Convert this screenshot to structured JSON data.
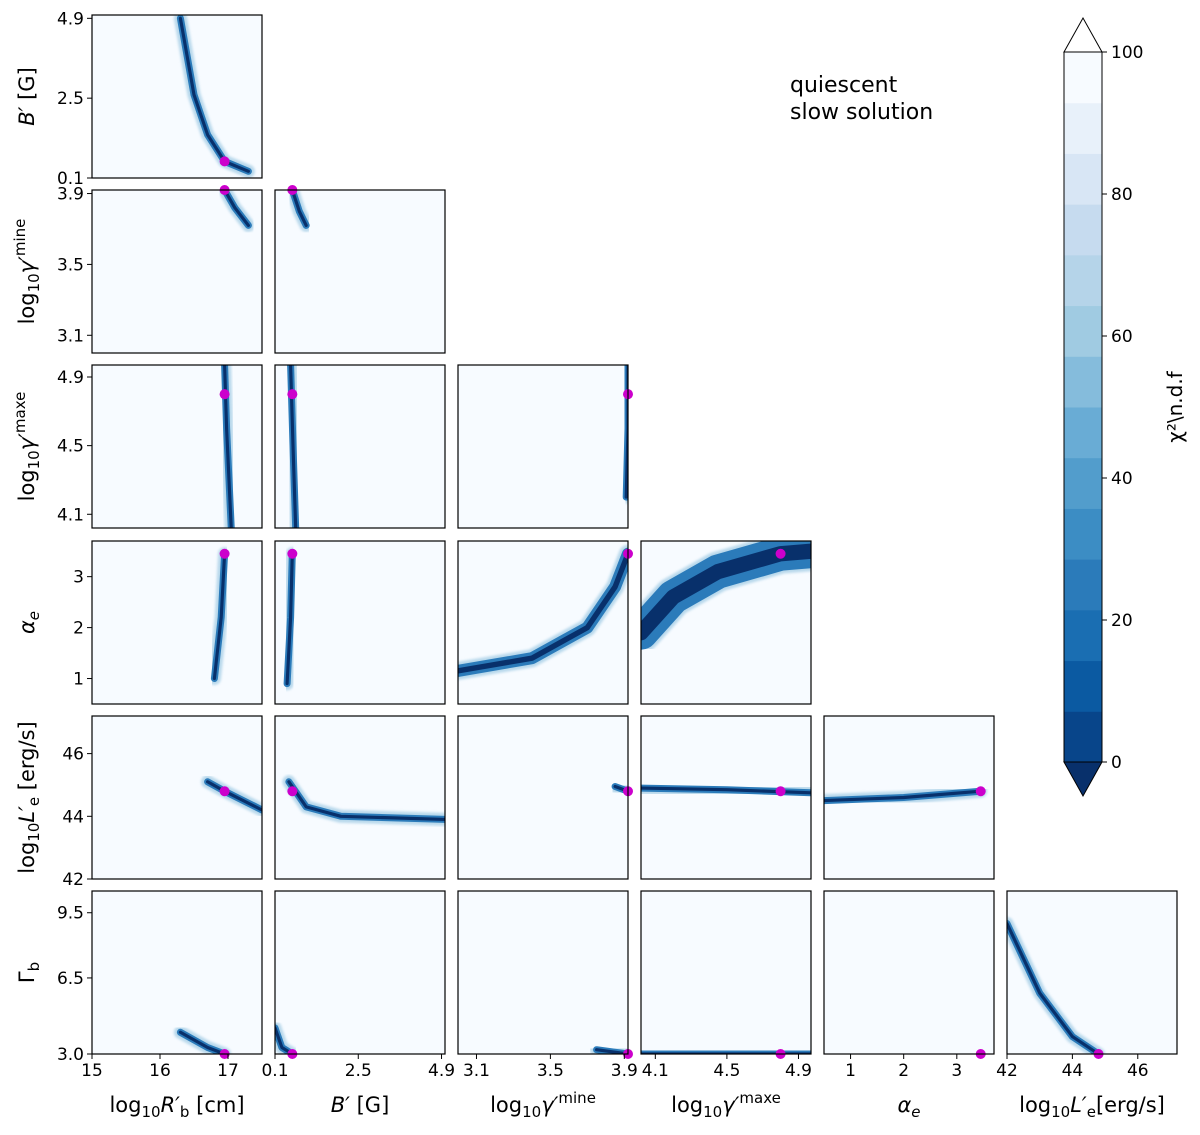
{
  "annotation": {
    "line1": "quiescent",
    "line2": "slow solution"
  },
  "colorbar": {
    "label": "χ²\\n.d.f",
    "ticks": [
      "0",
      "20",
      "40",
      "60",
      "80",
      "100"
    ],
    "range": [
      0,
      100
    ],
    "levels": 14,
    "extend": "both",
    "colormap": "Blues_r",
    "colors": [
      "#08306b",
      "#08458a",
      "#0b5aa2",
      "#1a6eb2",
      "#2b7bba",
      "#3c8dc4",
      "#529dcc",
      "#69acd5",
      "#85bcdc",
      "#a0cbe2",
      "#b5d4e9",
      "#c6dbef",
      "#d8e6f5",
      "#e8f1fa",
      "#f7fbff"
    ]
  },
  "best_fit_marker_color": "#cc00cc",
  "parameters": [
    {
      "id": "R",
      "label": "log₁₀R′b [cm]",
      "range": [
        15,
        17.5
      ],
      "ticks": [
        "15",
        "16",
        "17"
      ],
      "best": 16.95
    },
    {
      "id": "B",
      "label": "B′ [G]",
      "range": [
        0.1,
        5.0
      ],
      "ticks": [
        "0.1",
        "2.5",
        "4.9"
      ],
      "best": 0.6
    },
    {
      "id": "gmin",
      "label": "log₁₀γ′e^min",
      "range": [
        3.0,
        3.92
      ],
      "ticks": [
        "3.1",
        "3.5",
        "3.9"
      ],
      "best": 3.92
    },
    {
      "id": "gmax",
      "label": "log₁₀γ′e^max",
      "range": [
        4.02,
        4.97
      ],
      "ticks": [
        "4.1",
        "4.5",
        "4.9"
      ],
      "best": 4.8
    },
    {
      "id": "a",
      "label": "αe",
      "range": [
        0.5,
        3.7
      ],
      "ticks": [
        "1",
        "2",
        "3"
      ],
      "best": 3.45
    },
    {
      "id": "L",
      "label": "log₁₀L′e [erg/s]",
      "x_label": "log₁₀L′e[erg/s]",
      "range": [
        42,
        47.2
      ],
      "ticks": [
        "42",
        "44",
        "46"
      ],
      "best": 44.8
    },
    {
      "id": "G",
      "label": "Γb",
      "range": [
        3.0,
        10.5
      ],
      "ticks": [
        "3.0",
        "6.5",
        "9.5"
      ],
      "best": 3.0
    }
  ],
  "chart_data": {
    "type": "heatmap",
    "description": "Corner plot of χ²/n.d.f over pairs of parameters; valley curves (low χ²) in data units",
    "panels": [
      {
        "row": "B",
        "col": "R",
        "valley": [
          [
            16.3,
            4.9
          ],
          [
            16.5,
            2.6
          ],
          [
            16.7,
            1.4
          ],
          [
            16.95,
            0.6
          ],
          [
            17.3,
            0.3
          ]
        ]
      },
      {
        "row": "gmin",
        "col": "R",
        "valley": [
          [
            16.95,
            3.92
          ],
          [
            17.1,
            3.82
          ],
          [
            17.3,
            3.72
          ]
        ]
      },
      {
        "row": "gmin",
        "col": "B",
        "valley": [
          [
            0.6,
            3.92
          ],
          [
            0.8,
            3.8
          ],
          [
            1.0,
            3.72
          ]
        ]
      },
      {
        "row": "gmax",
        "col": "R",
        "valley": [
          [
            16.95,
            4.97
          ],
          [
            16.98,
            4.6
          ],
          [
            17.05,
            4.0
          ]
        ]
      },
      {
        "row": "gmax",
        "col": "B",
        "valley": [
          [
            0.55,
            4.97
          ],
          [
            0.62,
            4.5
          ],
          [
            0.7,
            4.0
          ]
        ]
      },
      {
        "row": "gmax",
        "col": "gmin",
        "valley": [
          [
            3.91,
            4.2
          ],
          [
            3.92,
            4.6
          ],
          [
            3.92,
            4.97
          ]
        ]
      },
      {
        "row": "a",
        "col": "R",
        "valley": [
          [
            16.8,
            1.0
          ],
          [
            16.9,
            2.2
          ],
          [
            16.95,
            3.45
          ]
        ]
      },
      {
        "row": "a",
        "col": "B",
        "valley": [
          [
            0.45,
            0.9
          ],
          [
            0.55,
            2.2
          ],
          [
            0.6,
            3.45
          ]
        ]
      },
      {
        "row": "a",
        "col": "gmin",
        "valley": [
          [
            3.0,
            1.15
          ],
          [
            3.4,
            1.4
          ],
          [
            3.7,
            2.0
          ],
          [
            3.85,
            2.8
          ],
          [
            3.92,
            3.45
          ]
        ]
      },
      {
        "row": "a",
        "col": "gmax",
        "valley": [
          [
            4.02,
            1.9
          ],
          [
            4.2,
            2.6
          ],
          [
            4.45,
            3.1
          ],
          [
            4.8,
            3.45
          ],
          [
            4.97,
            3.5
          ]
        ]
      },
      {
        "row": "L",
        "col": "R",
        "valley": [
          [
            16.7,
            45.1
          ],
          [
            16.95,
            44.8
          ],
          [
            17.5,
            44.2
          ]
        ]
      },
      {
        "row": "L",
        "col": "B",
        "valley": [
          [
            0.5,
            45.1
          ],
          [
            1.0,
            44.3
          ],
          [
            2.0,
            44.0
          ],
          [
            5.0,
            43.9
          ]
        ]
      },
      {
        "row": "L",
        "col": "gmin",
        "valley": [
          [
            3.85,
            44.95
          ],
          [
            3.92,
            44.8
          ]
        ]
      },
      {
        "row": "L",
        "col": "gmax",
        "valley": [
          [
            4.02,
            44.9
          ],
          [
            4.5,
            44.85
          ],
          [
            4.97,
            44.75
          ]
        ]
      },
      {
        "row": "L",
        "col": "a",
        "valley": [
          [
            0.5,
            44.5
          ],
          [
            2.0,
            44.6
          ],
          [
            3.45,
            44.8
          ]
        ]
      },
      {
        "row": "G",
        "col": "R",
        "valley": [
          [
            16.3,
            4.0
          ],
          [
            16.7,
            3.3
          ],
          [
            16.95,
            3.0
          ]
        ]
      },
      {
        "row": "G",
        "col": "B",
        "valley": [
          [
            0.1,
            4.2
          ],
          [
            0.3,
            3.3
          ],
          [
            0.6,
            3.0
          ]
        ]
      },
      {
        "row": "G",
        "col": "gmin",
        "valley": [
          [
            3.75,
            3.2
          ],
          [
            3.92,
            3.0
          ]
        ]
      },
      {
        "row": "G",
        "col": "gmax",
        "valley": [
          [
            4.02,
            3.0
          ],
          [
            4.97,
            3.0
          ]
        ]
      },
      {
        "row": "G",
        "col": "a",
        "valley": [
          [
            3.45,
            3.0
          ]
        ]
      },
      {
        "row": "G",
        "col": "L",
        "valley": [
          [
            42.0,
            9.0
          ],
          [
            43.0,
            5.8
          ],
          [
            44.0,
            3.8
          ],
          [
            44.8,
            3.0
          ]
        ]
      }
    ]
  }
}
